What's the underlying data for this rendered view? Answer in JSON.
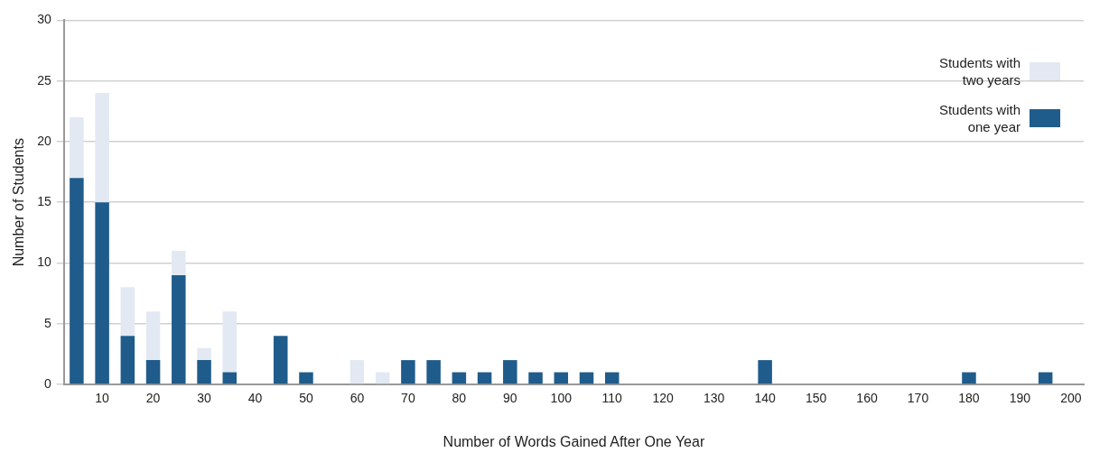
{
  "chart_data": {
    "type": "bar",
    "stacked": true,
    "xlabel": "Number of Words Gained After One Year",
    "ylabel": "Number of Students",
    "categories": [
      null,
      "10",
      null,
      "20",
      null,
      "30",
      null,
      "40",
      null,
      "50",
      null,
      "60",
      null,
      "70",
      null,
      "80",
      null,
      "90",
      null,
      "100",
      null,
      "110",
      null,
      "120",
      null,
      "130",
      null,
      "140",
      null,
      "150",
      null,
      "160",
      null,
      "170",
      null,
      "180",
      null,
      "190",
      null,
      "200"
    ],
    "series": [
      {
        "name": "Students with one year",
        "color": "#1f5c8b",
        "values": [
          17,
          15,
          4,
          2,
          9,
          2,
          1,
          0,
          4,
          1,
          0,
          0,
          0,
          2,
          2,
          1,
          1,
          2,
          1,
          1,
          1,
          1,
          0,
          0,
          0,
          0,
          0,
          2,
          0,
          0,
          0,
          0,
          0,
          0,
          0,
          1,
          0,
          0,
          1,
          0
        ]
      },
      {
        "name": "Students with two years",
        "color": "#e3e9f2",
        "values": [
          5,
          9,
          4,
          4,
          2,
          1,
          5,
          0,
          0,
          0,
          0,
          2,
          1,
          0,
          0,
          0,
          0,
          0,
          0,
          0,
          0,
          0,
          0,
          0,
          0,
          0,
          0,
          0,
          0,
          0,
          0,
          0,
          0,
          0,
          0,
          0,
          0,
          0,
          0,
          0
        ]
      }
    ],
    "ylim": [
      0,
      30
    ],
    "yticks": [
      0,
      5,
      10,
      15,
      20,
      25,
      30
    ],
    "grid": "y",
    "legend": "top right"
  }
}
